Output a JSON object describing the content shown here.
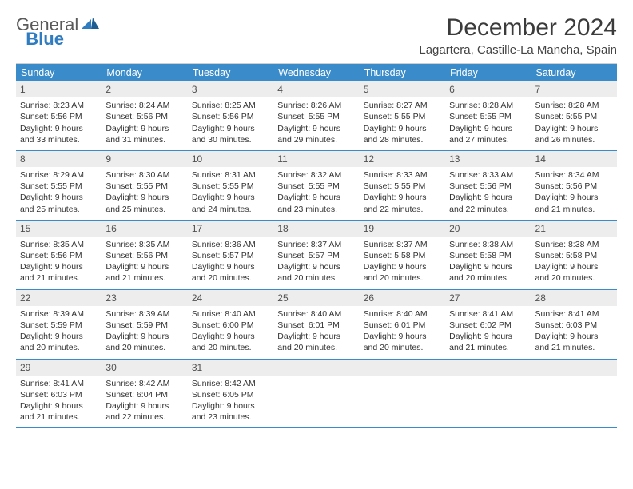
{
  "logo": {
    "general": "General",
    "blue": "Blue"
  },
  "header": {
    "month_title": "December 2024",
    "location": "Lagartera, Castille-La Mancha, Spain"
  },
  "colors": {
    "header_bg": "#3a8bc9",
    "header_text": "#ffffff",
    "day_number_bg": "#ededed",
    "row_border": "#3a8bc9",
    "text": "#333333",
    "logo_general": "#5a5a5a",
    "logo_blue": "#2f7dc0"
  },
  "weekdays": [
    "Sunday",
    "Monday",
    "Tuesday",
    "Wednesday",
    "Thursday",
    "Friday",
    "Saturday"
  ],
  "weeks": [
    [
      {
        "n": "1",
        "sunrise": "8:23 AM",
        "sunset": "5:56 PM",
        "daylight": "9 hours and 33 minutes."
      },
      {
        "n": "2",
        "sunrise": "8:24 AM",
        "sunset": "5:56 PM",
        "daylight": "9 hours and 31 minutes."
      },
      {
        "n": "3",
        "sunrise": "8:25 AM",
        "sunset": "5:56 PM",
        "daylight": "9 hours and 30 minutes."
      },
      {
        "n": "4",
        "sunrise": "8:26 AM",
        "sunset": "5:55 PM",
        "daylight": "9 hours and 29 minutes."
      },
      {
        "n": "5",
        "sunrise": "8:27 AM",
        "sunset": "5:55 PM",
        "daylight": "9 hours and 28 minutes."
      },
      {
        "n": "6",
        "sunrise": "8:28 AM",
        "sunset": "5:55 PM",
        "daylight": "9 hours and 27 minutes."
      },
      {
        "n": "7",
        "sunrise": "8:28 AM",
        "sunset": "5:55 PM",
        "daylight": "9 hours and 26 minutes."
      }
    ],
    [
      {
        "n": "8",
        "sunrise": "8:29 AM",
        "sunset": "5:55 PM",
        "daylight": "9 hours and 25 minutes."
      },
      {
        "n": "9",
        "sunrise": "8:30 AM",
        "sunset": "5:55 PM",
        "daylight": "9 hours and 25 minutes."
      },
      {
        "n": "10",
        "sunrise": "8:31 AM",
        "sunset": "5:55 PM",
        "daylight": "9 hours and 24 minutes."
      },
      {
        "n": "11",
        "sunrise": "8:32 AM",
        "sunset": "5:55 PM",
        "daylight": "9 hours and 23 minutes."
      },
      {
        "n": "12",
        "sunrise": "8:33 AM",
        "sunset": "5:55 PM",
        "daylight": "9 hours and 22 minutes."
      },
      {
        "n": "13",
        "sunrise": "8:33 AM",
        "sunset": "5:56 PM",
        "daylight": "9 hours and 22 minutes."
      },
      {
        "n": "14",
        "sunrise": "8:34 AM",
        "sunset": "5:56 PM",
        "daylight": "9 hours and 21 minutes."
      }
    ],
    [
      {
        "n": "15",
        "sunrise": "8:35 AM",
        "sunset": "5:56 PM",
        "daylight": "9 hours and 21 minutes."
      },
      {
        "n": "16",
        "sunrise": "8:35 AM",
        "sunset": "5:56 PM",
        "daylight": "9 hours and 21 minutes."
      },
      {
        "n": "17",
        "sunrise": "8:36 AM",
        "sunset": "5:57 PM",
        "daylight": "9 hours and 20 minutes."
      },
      {
        "n": "18",
        "sunrise": "8:37 AM",
        "sunset": "5:57 PM",
        "daylight": "9 hours and 20 minutes."
      },
      {
        "n": "19",
        "sunrise": "8:37 AM",
        "sunset": "5:58 PM",
        "daylight": "9 hours and 20 minutes."
      },
      {
        "n": "20",
        "sunrise": "8:38 AM",
        "sunset": "5:58 PM",
        "daylight": "9 hours and 20 minutes."
      },
      {
        "n": "21",
        "sunrise": "8:38 AM",
        "sunset": "5:58 PM",
        "daylight": "9 hours and 20 minutes."
      }
    ],
    [
      {
        "n": "22",
        "sunrise": "8:39 AM",
        "sunset": "5:59 PM",
        "daylight": "9 hours and 20 minutes."
      },
      {
        "n": "23",
        "sunrise": "8:39 AM",
        "sunset": "5:59 PM",
        "daylight": "9 hours and 20 minutes."
      },
      {
        "n": "24",
        "sunrise": "8:40 AM",
        "sunset": "6:00 PM",
        "daylight": "9 hours and 20 minutes."
      },
      {
        "n": "25",
        "sunrise": "8:40 AM",
        "sunset": "6:01 PM",
        "daylight": "9 hours and 20 minutes."
      },
      {
        "n": "26",
        "sunrise": "8:40 AM",
        "sunset": "6:01 PM",
        "daylight": "9 hours and 20 minutes."
      },
      {
        "n": "27",
        "sunrise": "8:41 AM",
        "sunset": "6:02 PM",
        "daylight": "9 hours and 21 minutes."
      },
      {
        "n": "28",
        "sunrise": "8:41 AM",
        "sunset": "6:03 PM",
        "daylight": "9 hours and 21 minutes."
      }
    ],
    [
      {
        "n": "29",
        "sunrise": "8:41 AM",
        "sunset": "6:03 PM",
        "daylight": "9 hours and 21 minutes."
      },
      {
        "n": "30",
        "sunrise": "8:42 AM",
        "sunset": "6:04 PM",
        "daylight": "9 hours and 22 minutes."
      },
      {
        "n": "31",
        "sunrise": "8:42 AM",
        "sunset": "6:05 PM",
        "daylight": "9 hours and 23 minutes."
      },
      {
        "empty": true
      },
      {
        "empty": true
      },
      {
        "empty": true
      },
      {
        "empty": true
      }
    ]
  ],
  "labels": {
    "sunrise_prefix": "Sunrise: ",
    "sunset_prefix": "Sunset: ",
    "daylight_prefix": "Daylight: "
  }
}
